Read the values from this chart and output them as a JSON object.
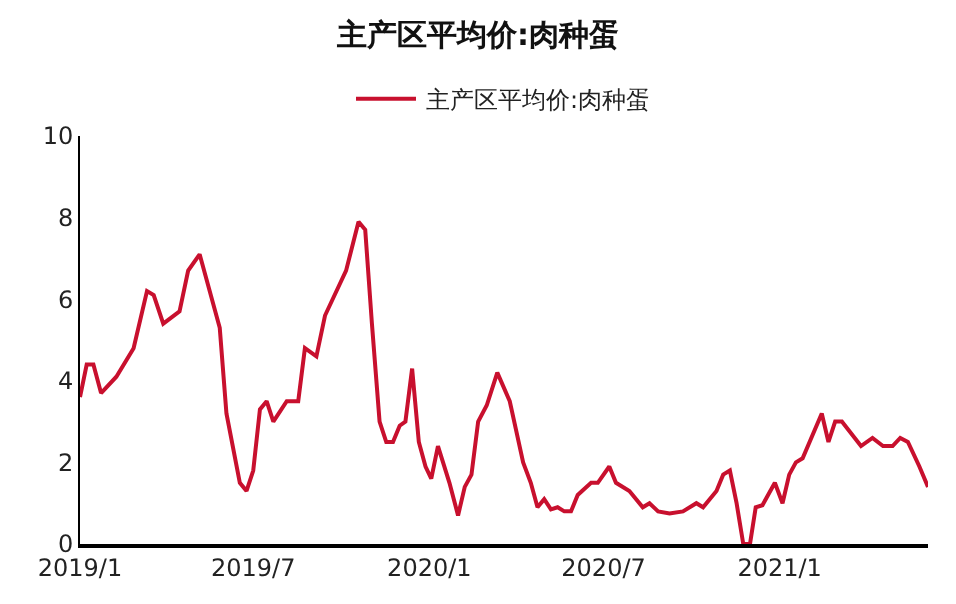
{
  "chart_data": {
    "type": "line",
    "title": "主产区平均价:肉种蛋",
    "legend": "top",
    "x": [
      "2019-01-01",
      "2019-01-08",
      "2019-01-15",
      "2019-01-23",
      "2019-02-08",
      "2019-02-26",
      "2019-03-12",
      "2019-03-19",
      "2019-03-29",
      "2019-04-15",
      "2019-04-24",
      "2019-05-06",
      "2019-05-27",
      "2019-06-03",
      "2019-06-17",
      "2019-06-24",
      "2019-07-01",
      "2019-07-08",
      "2019-07-15",
      "2019-07-22",
      "2019-08-05",
      "2019-08-17",
      "2019-08-24",
      "2019-09-05",
      "2019-09-14",
      "2019-10-06",
      "2019-10-19",
      "2019-10-26",
      "2019-11-02",
      "2019-11-10",
      "2019-11-17",
      "2019-11-24",
      "2019-12-01",
      "2019-12-07",
      "2019-12-14",
      "2019-12-21",
      "2019-12-28",
      "2020-01-03",
      "2020-01-10",
      "2020-01-22",
      "2020-01-31",
      "2020-02-07",
      "2020-02-14",
      "2020-02-21",
      "2020-03-01",
      "2020-03-12",
      "2020-03-25",
      "2020-04-08",
      "2020-04-16",
      "2020-04-23",
      "2020-04-30",
      "2020-05-07",
      "2020-05-14",
      "2020-05-21",
      "2020-05-28",
      "2020-06-04",
      "2020-06-18",
      "2020-06-25",
      "2020-07-07",
      "2020-07-14",
      "2020-07-28",
      "2020-08-11",
      "2020-08-18",
      "2020-08-27",
      "2020-09-08",
      "2020-09-22",
      "2020-10-06",
      "2020-10-13",
      "2020-10-27",
      "2020-11-03",
      "2020-11-10",
      "2020-11-17",
      "2020-11-24",
      "2020-12-01",
      "2020-12-07",
      "2020-12-14",
      "2020-12-27",
      "2021-01-04",
      "2021-01-11",
      "2021-01-18",
      "2021-01-25",
      "2021-02-14",
      "2021-02-21",
      "2021-02-28",
      "2021-03-07",
      "2021-03-27",
      "2021-04-08",
      "2021-04-19",
      "2021-04-29",
      "2021-05-07",
      "2021-05-15",
      "2021-05-27",
      "2021-06-05"
    ],
    "series": [
      {
        "name": "主产区平均价:肉种蛋",
        "color": "#c8102e",
        "values": [
          3.6,
          4.4,
          4.4,
          3.7,
          4.1,
          4.8,
          6.2,
          6.1,
          5.4,
          5.7,
          6.7,
          7.1,
          5.3,
          3.2,
          1.5,
          1.3,
          1.8,
          3.3,
          3.5,
          3.0,
          3.5,
          3.5,
          4.8,
          4.6,
          5.6,
          6.7,
          7.9,
          7.7,
          5.4,
          3.0,
          2.5,
          2.5,
          2.9,
          3.0,
          4.3,
          2.5,
          1.9,
          1.6,
          2.4,
          1.5,
          0.7,
          1.4,
          1.7,
          3.0,
          3.4,
          4.2,
          3.5,
          2.0,
          1.5,
          0.9,
          1.1,
          0.85,
          0.9,
          0.8,
          0.8,
          1.2,
          1.5,
          1.5,
          1.9,
          1.5,
          1.3,
          0.9,
          1.0,
          0.8,
          0.75,
          0.8,
          1.0,
          0.9,
          1.3,
          1.7,
          1.8,
          1.0,
          0.0,
          0.0,
          0.9,
          0.95,
          1.5,
          1.0,
          1.7,
          2.0,
          2.1,
          3.2,
          2.5,
          3.0,
          3.0,
          2.4,
          2.6,
          2.4,
          2.4,
          2.6,
          2.5,
          1.9,
          1.4
        ]
      }
    ],
    "xlim": [
      "2019-01-01",
      "2021-06-05"
    ],
    "xticks": [
      {
        "value": "2019-01-01",
        "label": "2019/1"
      },
      {
        "value": "2019-07-01",
        "label": "2019/7"
      },
      {
        "value": "2020-01-01",
        "label": "2020/1"
      },
      {
        "value": "2020-07-01",
        "label": "2020/7"
      },
      {
        "value": "2021-01-01",
        "label": "2021/1"
      }
    ],
    "ylim": [
      0,
      10
    ],
    "yticks": [
      0,
      2,
      4,
      6,
      8,
      10
    ],
    "marker": "none",
    "line_style": "solid"
  }
}
